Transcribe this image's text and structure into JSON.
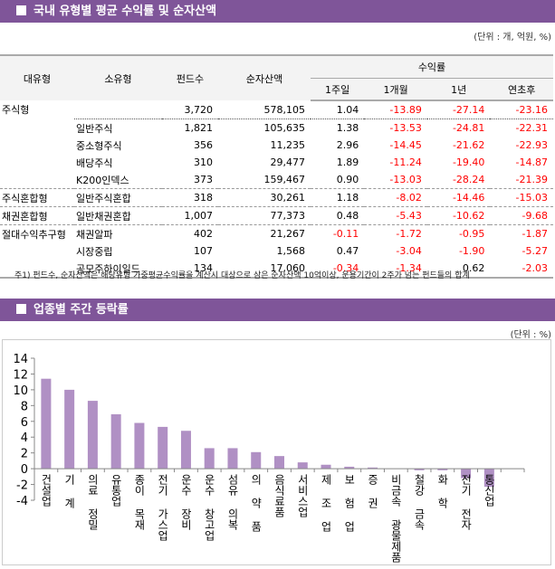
{
  "section1": {
    "title": "국내 유형별 평균 수익률 및 순자산액",
    "unit": "(단위 : 개, 억원, %)",
    "headers": {
      "major": "대유형",
      "minor": "소유형",
      "funds": "펀드수",
      "assets": "순자산액",
      "returns": "수익률",
      "w1": "1주일",
      "m1": "1개월",
      "y1": "1년",
      "ytd": "연초후"
    },
    "rows": [
      [
        "주식형",
        "",
        "3,720",
        "578,105",
        "1.04",
        "-13.89",
        "-27.14",
        "-23.16"
      ],
      [
        "",
        "일반주식",
        "1,821",
        "105,635",
        "1.38",
        "-13.53",
        "-24.81",
        "-22.31"
      ],
      [
        "",
        "중소형주식",
        "356",
        "11,235",
        "2.96",
        "-14.45",
        "-21.62",
        "-22.93"
      ],
      [
        "",
        "배당주식",
        "310",
        "29,477",
        "1.89",
        "-11.24",
        "-19.40",
        "-14.87"
      ],
      [
        "",
        "K200인덱스",
        "373",
        "159,467",
        "0.90",
        "-13.03",
        "-28.24",
        "-21.39"
      ],
      [
        "주식혼합형",
        "일반주식혼합",
        "318",
        "30,261",
        "1.18",
        "-8.02",
        "-14.46",
        "-15.03"
      ],
      [
        "채권혼합형",
        "일반채권혼합",
        "1,007",
        "77,373",
        "0.48",
        "-5.43",
        "-10.62",
        "-9.68"
      ],
      [
        "절대수익추구형",
        "채권알파",
        "402",
        "21,267",
        "-0.11",
        "-1.72",
        "-0.95",
        "-1.87"
      ],
      [
        "",
        "시장중립",
        "107",
        "1,568",
        "0.47",
        "-3.04",
        "-1.90",
        "-5.27"
      ],
      [
        "",
        "공모주하이일드",
        "134",
        "17,060",
        "-0.34",
        "-1.34",
        "0.62",
        "-2.03"
      ]
    ],
    "note": "주1) 펀드수, 순자산액은 해당유형 가중평균수익률을 계산시 대상으로 삼은 순자산액 10억이상, 운용기간이 2주가 넘는 펀드들의 합계"
  },
  "section2": {
    "title": "업종별 주간 등락률",
    "unit": "(단위 : %)"
  },
  "colors": {
    "header": "#7F5599",
    "bar": "#B090C4",
    "negative": "#FF0000"
  },
  "chart_data": {
    "type": "bar",
    "ylim": [
      -4,
      14
    ],
    "yticks": [
      -4,
      -2,
      0,
      2,
      4,
      6,
      8,
      10,
      12,
      14
    ],
    "grid": false,
    "categories": [
      "건설업",
      "기 계",
      "의료 정밀",
      "유통업",
      "종이 목재",
      "전기 가스업",
      "운수 장비",
      "운수 창고업",
      "섬유 의복",
      "의 약 품",
      "음식료품",
      "서비스업",
      "제 조 업",
      "보 험 업",
      "증 권",
      "비금속 광물제품",
      "철강 금속",
      "화 학",
      "전기 전자",
      "통신업"
    ],
    "values": [
      11.4,
      10.0,
      8.6,
      6.9,
      5.8,
      5.3,
      4.8,
      2.6,
      2.6,
      2.1,
      1.6,
      0.8,
      0.5,
      0.25,
      0.15,
      0.0,
      -0.2,
      -0.2,
      -1.2,
      -2.3
    ]
  }
}
